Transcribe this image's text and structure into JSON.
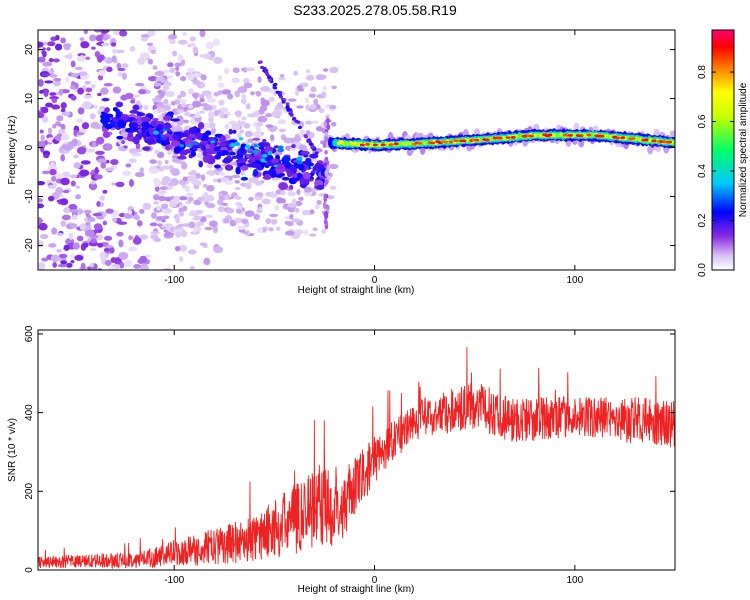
{
  "title": "S233.2025.278.05.58.R19",
  "chart_data": [
    {
      "type": "heatmap",
      "name": "spectrogram",
      "xlabel": "Height of straight line (km)",
      "ylabel": "Frequency (Hz)",
      "xlim": [
        -168,
        150
      ],
      "ylim": [
        -25,
        24
      ],
      "xticks": [
        -100,
        0,
        100
      ],
      "yticks": [
        -20,
        -10,
        0,
        10,
        20
      ],
      "colorbar": {
        "label": "Normalized spectral amplitude",
        "range": [
          0.0,
          0.97
        ],
        "ticks": [
          0.0,
          0.2,
          0.4,
          0.6,
          0.8
        ],
        "colors": [
          "#ffffff",
          "#c9a6f0",
          "#8a2be2",
          "#0000ff",
          "#00c8ff",
          "#00ff66",
          "#ffff00",
          "#ff8000",
          "#ff0000",
          "#ff0060"
        ]
      },
      "ridge": {
        "description": "main signal trace",
        "points": [
          [
            -20,
            1
          ],
          [
            0,
            0.5
          ],
          [
            20,
            0.8
          ],
          [
            50,
            1.5
          ],
          [
            80,
            2.5
          ],
          [
            110,
            2.5
          ],
          [
            150,
            1
          ]
        ]
      }
    },
    {
      "type": "line",
      "name": "snr",
      "xlabel": "Height of straight line (km)",
      "ylabel": "SNR (10 * v/v)",
      "xlim": [
        -168,
        150
      ],
      "ylim": [
        0,
        610
      ],
      "xticks": [
        -100,
        0,
        100
      ],
      "yticks": [
        0,
        200,
        400,
        600
      ],
      "color": "#ee2222",
      "envelope": [
        {
          "x": -168,
          "mean": 20,
          "noise": 15
        },
        {
          "x": -120,
          "mean": 25,
          "noise": 20
        },
        {
          "x": -90,
          "mean": 50,
          "noise": 40
        },
        {
          "x": -60,
          "mean": 80,
          "noise": 60
        },
        {
          "x": -40,
          "mean": 130,
          "noise": 90
        },
        {
          "x": -28,
          "mean": 170,
          "noise": 110
        },
        {
          "x": -18,
          "mean": 150,
          "noise": 90
        },
        {
          "x": 0,
          "mean": 280,
          "noise": 60
        },
        {
          "x": 20,
          "mean": 380,
          "noise": 50
        },
        {
          "x": 50,
          "mean": 420,
          "noise": 60
        },
        {
          "x": 70,
          "mean": 380,
          "noise": 60
        },
        {
          "x": 100,
          "mean": 390,
          "noise": 50
        },
        {
          "x": 130,
          "mean": 380,
          "noise": 60
        },
        {
          "x": 150,
          "mean": 370,
          "noise": 60
        }
      ]
    }
  ]
}
